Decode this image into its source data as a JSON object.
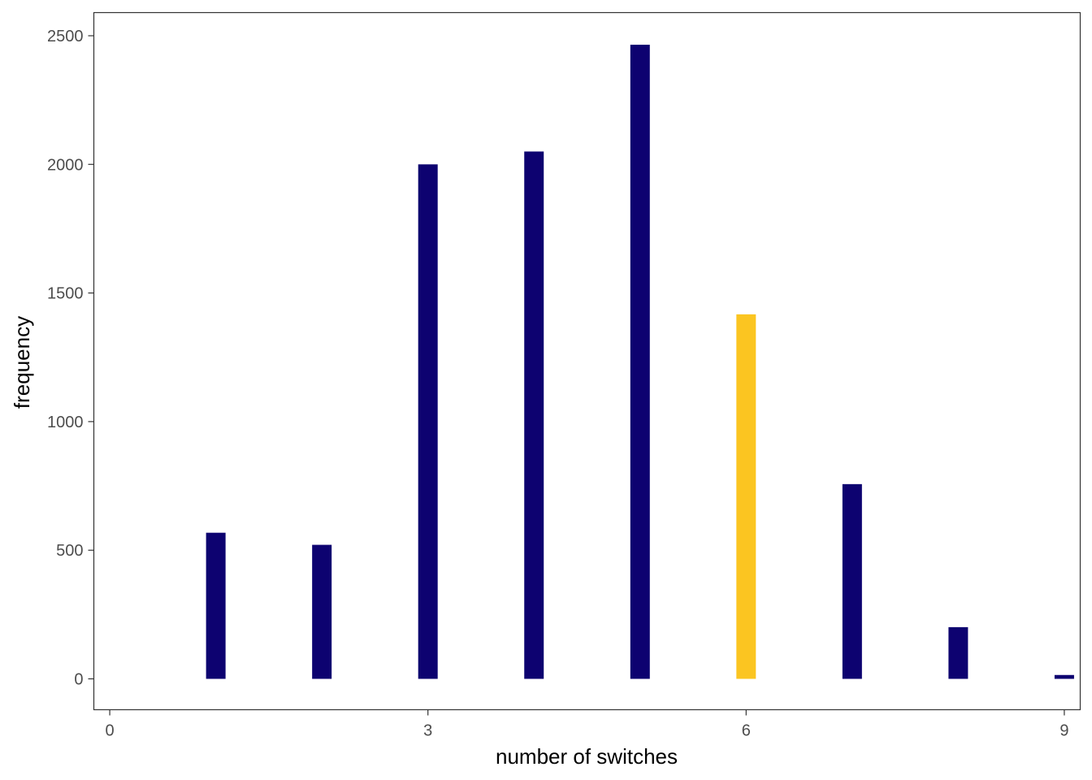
{
  "chart_data": {
    "type": "bar",
    "xlabel": "number of switches",
    "ylabel": "frequency",
    "x": [
      1,
      2,
      3,
      4,
      5,
      6,
      7,
      8,
      9
    ],
    "values": [
      568,
      521,
      2000,
      2050,
      2465,
      1417,
      757,
      201,
      15
    ],
    "highlight_x": 6,
    "xlim": [
      -0.15,
      9.15
    ],
    "ylim": [
      -120,
      2590
    ],
    "x_ticks": [
      "0",
      "3",
      "6",
      "9"
    ],
    "y_ticks": [
      "0",
      "500",
      "1000",
      "1500",
      "2000",
      "2500"
    ],
    "grid": false,
    "legend": "none",
    "colors": {
      "bar": "#0d0270",
      "highlight": "#fbc521",
      "panel_border": "#333333"
    }
  }
}
